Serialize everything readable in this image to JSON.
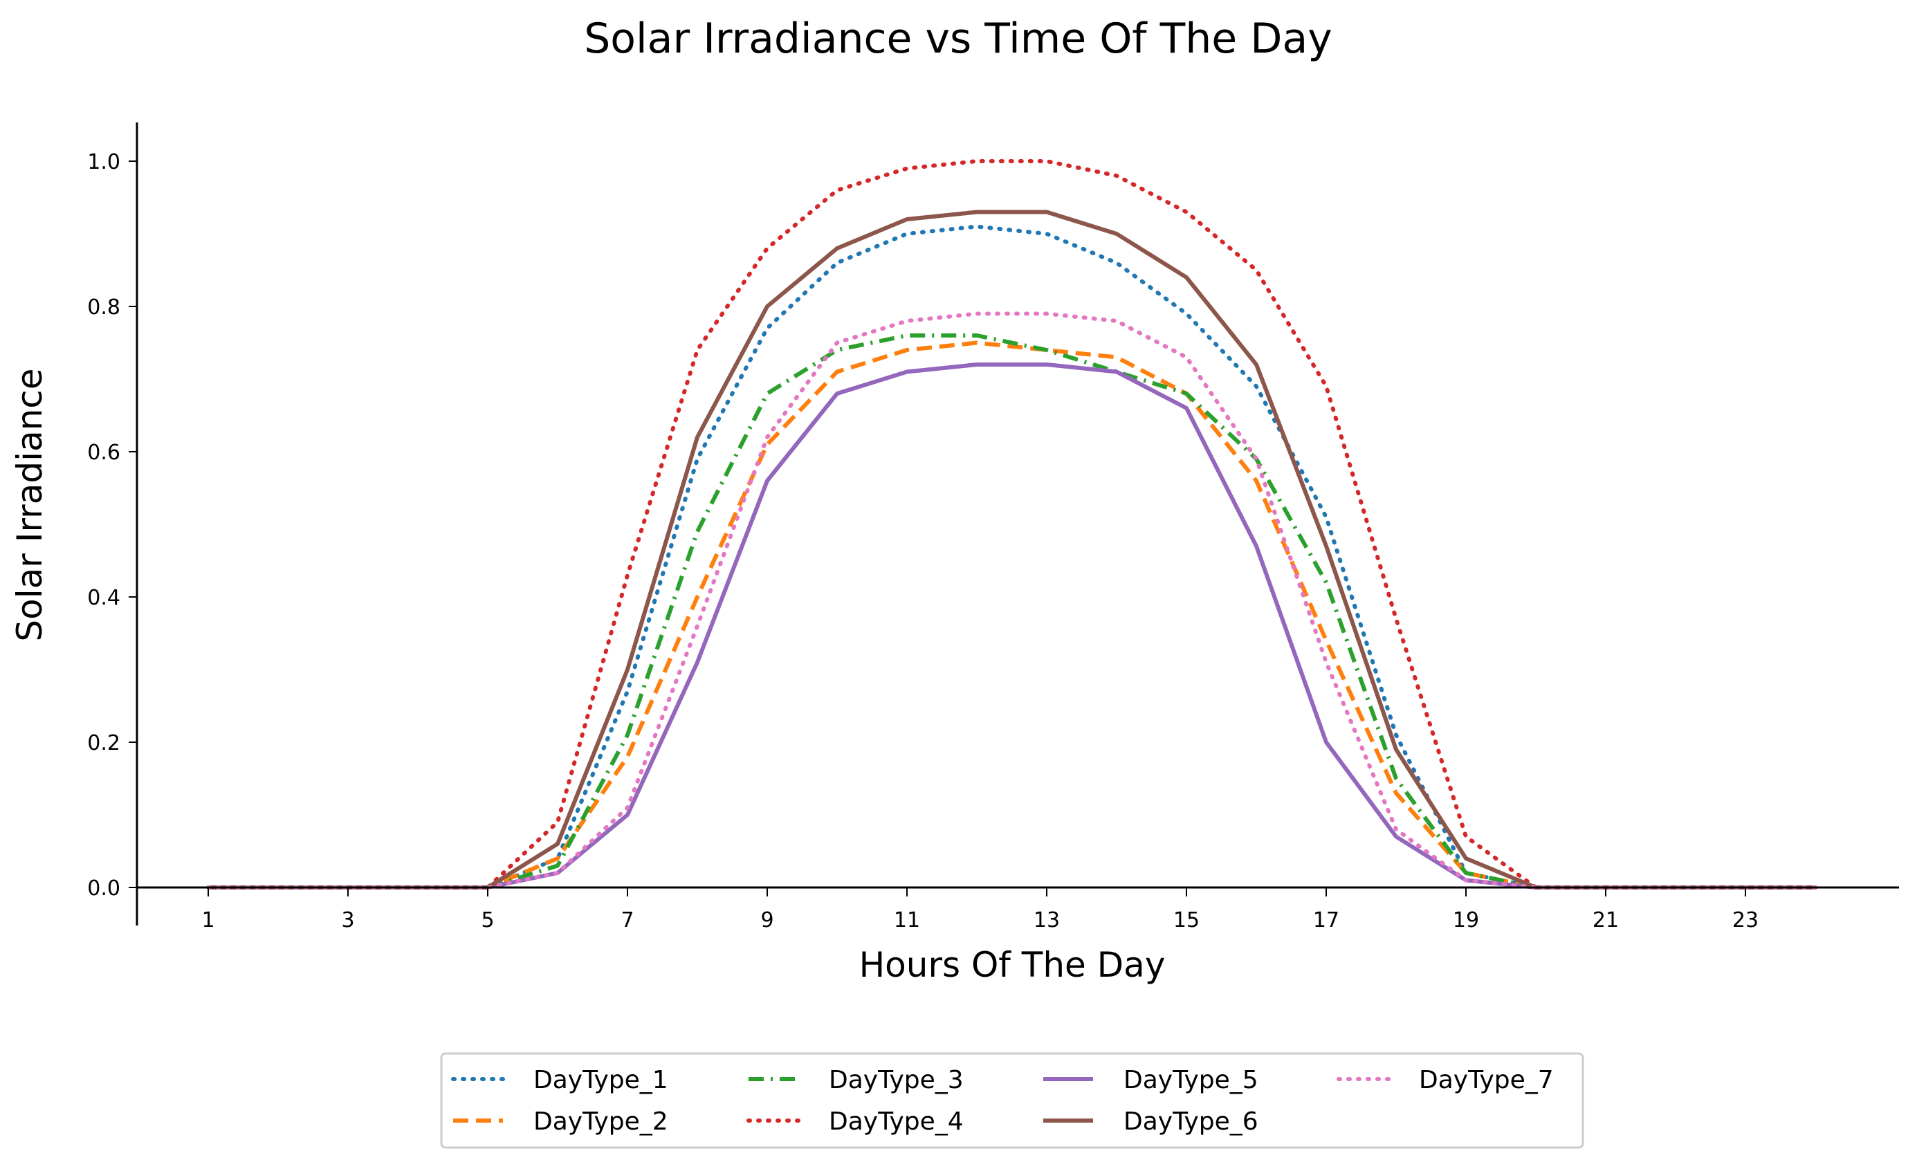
{
  "chart_data": {
    "type": "line",
    "title": "Solar Irradiance vs Time Of The Day",
    "xlabel": "Hours Of The Day",
    "ylabel": "Solar Irradiance",
    "xlim": [
      0,
      25.5
    ],
    "ylim": [
      0,
      1.05
    ],
    "xticks": [
      1,
      3,
      5,
      7,
      9,
      11,
      13,
      15,
      17,
      19,
      21,
      23
    ],
    "yticks": [
      "0.0",
      "0.2",
      "0.4",
      "0.6",
      "0.8",
      "1.0"
    ],
    "grid": false,
    "legend_position": "bottom-center",
    "x": [
      1,
      2,
      3,
      4,
      5,
      6,
      7,
      8,
      9,
      10,
      11,
      12,
      13,
      14,
      15,
      16,
      17,
      18,
      19,
      20,
      21,
      22,
      23,
      24
    ],
    "series": [
      {
        "name": "DayType_1",
        "color": "#1f77b4",
        "style": "dotted",
        "values": [
          0,
          0,
          0,
          0,
          0,
          0.04,
          0.27,
          0.59,
          0.77,
          0.86,
          0.9,
          0.91,
          0.9,
          0.86,
          0.79,
          0.69,
          0.51,
          0.21,
          0.02,
          0,
          0,
          0,
          0,
          0
        ]
      },
      {
        "name": "DayType_2",
        "color": "#ff7f0e",
        "style": "dashed",
        "values": [
          0,
          0,
          0,
          0,
          0,
          0.04,
          0.18,
          0.4,
          0.61,
          0.71,
          0.74,
          0.75,
          0.74,
          0.73,
          0.68,
          0.56,
          0.34,
          0.13,
          0.02,
          0,
          0,
          0,
          0,
          0
        ]
      },
      {
        "name": "DayType_3",
        "color": "#2ca02c",
        "style": "dashdot",
        "values": [
          0,
          0,
          0,
          0,
          0,
          0.03,
          0.21,
          0.49,
          0.68,
          0.74,
          0.76,
          0.76,
          0.74,
          0.71,
          0.68,
          0.59,
          0.42,
          0.15,
          0.02,
          0,
          0,
          0,
          0,
          0
        ]
      },
      {
        "name": "DayType_4",
        "color": "#d62728",
        "style": "dotted",
        "values": [
          0,
          0,
          0,
          0,
          0,
          0.09,
          0.43,
          0.74,
          0.88,
          0.96,
          0.99,
          1.0,
          1.0,
          0.98,
          0.93,
          0.85,
          0.69,
          0.37,
          0.07,
          0,
          0,
          0,
          0,
          0
        ]
      },
      {
        "name": "DayType_5",
        "color": "#9467bd",
        "style": "solid",
        "values": [
          0,
          0,
          0,
          0,
          0,
          0.02,
          0.1,
          0.31,
          0.56,
          0.68,
          0.71,
          0.72,
          0.72,
          0.71,
          0.66,
          0.47,
          0.2,
          0.07,
          0.01,
          0,
          0,
          0,
          0,
          0
        ]
      },
      {
        "name": "DayType_6",
        "color": "#8c564b",
        "style": "solid",
        "values": [
          0,
          0,
          0,
          0,
          0,
          0.06,
          0.3,
          0.62,
          0.8,
          0.88,
          0.92,
          0.93,
          0.93,
          0.9,
          0.84,
          0.72,
          0.47,
          0.19,
          0.04,
          0,
          0,
          0,
          0,
          0
        ]
      },
      {
        "name": "DayType_7",
        "color": "#e377c2",
        "style": "dotted",
        "values": [
          0,
          0,
          0,
          0,
          0,
          0.02,
          0.11,
          0.36,
          0.62,
          0.75,
          0.78,
          0.79,
          0.79,
          0.78,
          0.73,
          0.59,
          0.31,
          0.08,
          0.01,
          0,
          0,
          0,
          0,
          0
        ]
      }
    ]
  }
}
